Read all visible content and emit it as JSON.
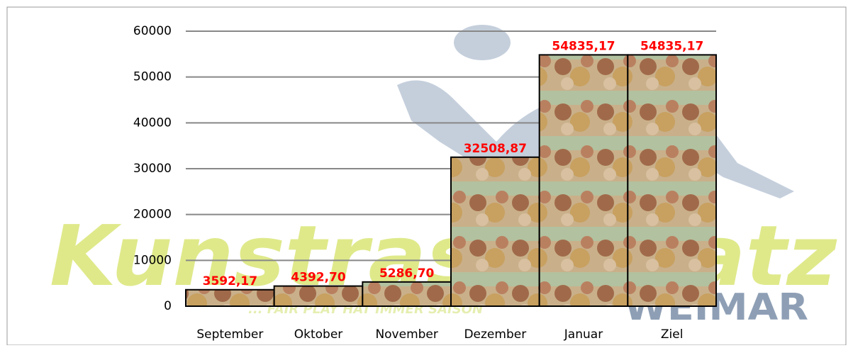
{
  "chart_data": {
    "type": "bar",
    "watermark": "Kunstrasenplatz",
    "watermark_sub": "WEIMAR",
    "watermark_tagline": "... FAIR PLAY HAT IMMER SAISON",
    "categories": [
      "September",
      "Oktober",
      "November",
      "Dezember",
      "Januar",
      "Ziel"
    ],
    "values": [
      3592.17,
      4392.7,
      5286.7,
      32508.87,
      54835.17,
      54835.17
    ],
    "value_labels": [
      "3592,17",
      "4392,70",
      "5286,70",
      "32508,87",
      "54835,17",
      "54835,17"
    ],
    "color": "#b59d7c",
    "label_color": "#ff0000",
    "ylim": [
      0,
      60000
    ],
    "yticks": [
      0,
      10000,
      20000,
      30000,
      40000,
      50000,
      60000
    ],
    "grid": true
  }
}
